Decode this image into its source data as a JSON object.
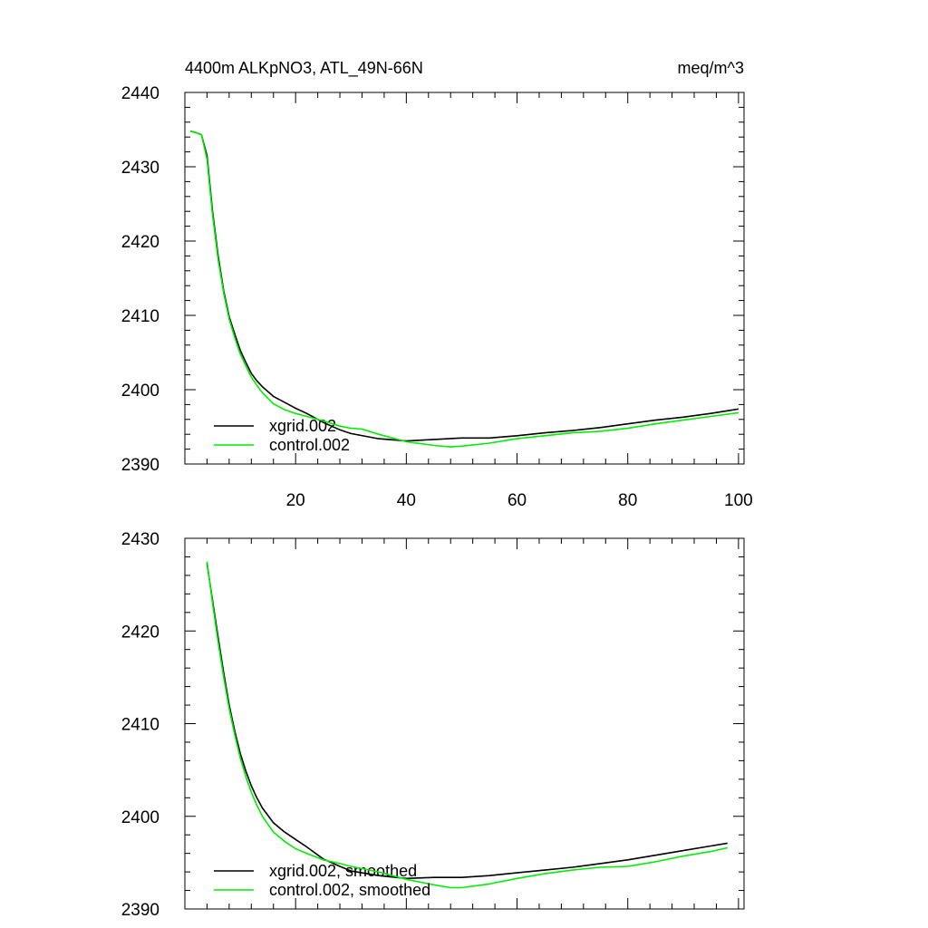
{
  "chart_data": [
    {
      "type": "line",
      "title": "4400m ALKpNO3, ATL_49N-66N",
      "units": "meq/m^3",
      "xlim": [
        0,
        101
      ],
      "ylim": [
        2390,
        2440
      ],
      "x_ticks": [
        20,
        40,
        60,
        80,
        100
      ],
      "y_ticks": [
        2390,
        2400,
        2410,
        2420,
        2430,
        2440
      ],
      "x_tick_labels_shown": true,
      "legend_position": "bottom-left",
      "series": [
        {
          "name": "xgrid.002",
          "color": "#000000",
          "x": [
            1,
            2,
            3,
            4,
            5,
            6,
            7,
            8,
            9,
            10,
            11,
            12,
            13,
            14,
            16,
            18,
            20,
            22,
            25,
            28,
            30,
            35,
            40,
            45,
            50,
            55,
            60,
            65,
            70,
            75,
            80,
            85,
            90,
            95,
            100
          ],
          "values": [
            2434.8,
            2434.6,
            2434.3,
            2431.5,
            2424,
            2418,
            2413.3,
            2409.8,
            2407.5,
            2405.3,
            2403.7,
            2402.2,
            2401.2,
            2400.4,
            2399.1,
            2398.3,
            2397.5,
            2396.8,
            2395.6,
            2394.6,
            2394.1,
            2393.4,
            2393.1,
            2393.3,
            2393.5,
            2393.5,
            2393.8,
            2394.2,
            2394.5,
            2394.9,
            2395.4,
            2395.9,
            2396.3,
            2396.8,
            2397.4
          ]
        },
        {
          "name": "control.002",
          "color": "#00ee00",
          "x": [
            1,
            2,
            3,
            4,
            5,
            6,
            7,
            8,
            9,
            10,
            11,
            12,
            13,
            14,
            16,
            18,
            20,
            22,
            25,
            28,
            30,
            32,
            35,
            40,
            45,
            48,
            50,
            55,
            60,
            65,
            70,
            75,
            80,
            85,
            90,
            95,
            100
          ],
          "values": [
            2434.8,
            2434.6,
            2434.3,
            2431,
            2423.5,
            2417.5,
            2413,
            2409.5,
            2407,
            2404.8,
            2403.2,
            2401.7,
            2400.6,
            2399.6,
            2398.1,
            2397.3,
            2396.8,
            2396.4,
            2395.8,
            2395.1,
            2394.8,
            2394.7,
            2394,
            2393,
            2392.5,
            2392.3,
            2392.4,
            2392.8,
            2393.4,
            2393.8,
            2394.2,
            2394.4,
            2394.8,
            2395.4,
            2395.9,
            2396.4,
            2396.9
          ]
        }
      ]
    },
    {
      "type": "line",
      "xlim": [
        0,
        101
      ],
      "ylim": [
        2390,
        2430
      ],
      "x_ticks": [
        20,
        40,
        60,
        80,
        100
      ],
      "y_ticks": [
        2390,
        2400,
        2410,
        2420,
        2430
      ],
      "x_tick_labels_shown": false,
      "legend_position": "bottom-left",
      "series": [
        {
          "name": "xgrid.002, smoothed",
          "color": "#000000",
          "x": [
            4,
            5,
            6,
            7,
            8,
            9,
            10,
            11,
            12,
            13,
            14,
            16,
            18,
            20,
            22,
            25,
            28,
            30,
            35,
            40,
            45,
            50,
            55,
            60,
            65,
            70,
            75,
            80,
            85,
            90,
            95,
            98
          ],
          "values": [
            2427.3,
            2423.3,
            2419.3,
            2415.5,
            2412,
            2409.2,
            2406.8,
            2404.9,
            2403.3,
            2402,
            2400.9,
            2399.3,
            2398.3,
            2397.5,
            2396.7,
            2395.4,
            2394.6,
            2394.1,
            2393.6,
            2393.3,
            2393.4,
            2393.4,
            2393.6,
            2393.9,
            2394.2,
            2394.5,
            2394.9,
            2395.3,
            2395.8,
            2396.3,
            2396.8,
            2397.1
          ]
        },
        {
          "name": "control.002, smoothed",
          "color": "#00ee00",
          "x": [
            4,
            5,
            6,
            7,
            8,
            9,
            10,
            11,
            12,
            13,
            14,
            16,
            18,
            20,
            22,
            25,
            28,
            30,
            35,
            40,
            45,
            48,
            50,
            55,
            60,
            65,
            70,
            75,
            80,
            85,
            90,
            95,
            98
          ],
          "values": [
            2427.5,
            2423,
            2418.8,
            2415,
            2411.6,
            2408.8,
            2406.3,
            2404.3,
            2402.6,
            2401.2,
            2400,
            2398.3,
            2397.3,
            2396.5,
            2396,
            2395.3,
            2394.9,
            2394.6,
            2394,
            2393.2,
            2392.6,
            2392.3,
            2392.3,
            2392.7,
            2393.3,
            2393.8,
            2394.2,
            2394.5,
            2394.6,
            2395.1,
            2395.7,
            2396.2,
            2396.6
          ]
        }
      ]
    }
  ]
}
